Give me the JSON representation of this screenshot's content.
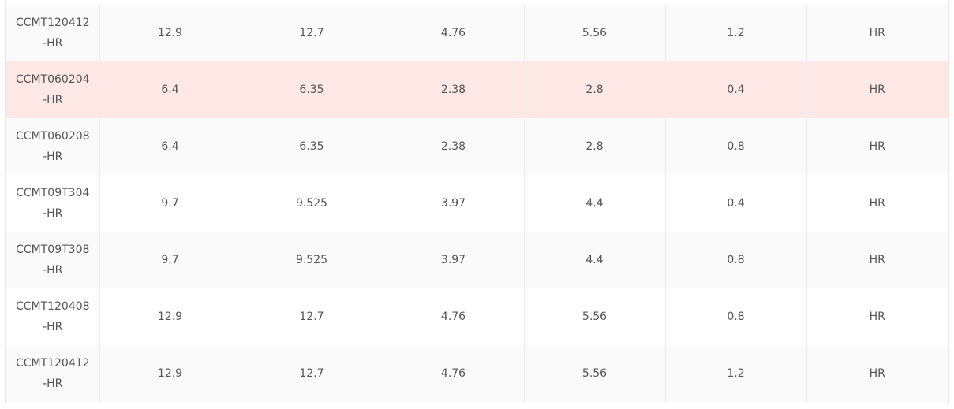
{
  "table": {
    "rows": [
      [
        "CCMT120412-HR",
        12.9,
        12.7,
        4.76,
        5.56,
        1.2,
        "HR"
      ],
      [
        "CCMT060204-HR",
        6.4,
        6.35,
        2.38,
        2.8,
        0.4,
        "HR"
      ],
      [
        "CCMT060208-HR",
        6.4,
        6.35,
        2.38,
        2.8,
        0.8,
        "HR"
      ],
      [
        "CCMT09T304-HR",
        9.7,
        9.525,
        3.97,
        4.4,
        0.4,
        "HR"
      ],
      [
        "CCMT09T308-HR",
        9.7,
        9.525,
        3.97,
        4.4,
        0.8,
        "HR"
      ],
      [
        "CCMT120408-HR",
        12.9,
        12.7,
        4.76,
        5.56,
        0.8,
        "HR"
      ],
      [
        "CCMT120412-HR",
        12.9,
        12.7,
        4.76,
        5.56,
        1.2,
        "HR"
      ]
    ]
  }
}
